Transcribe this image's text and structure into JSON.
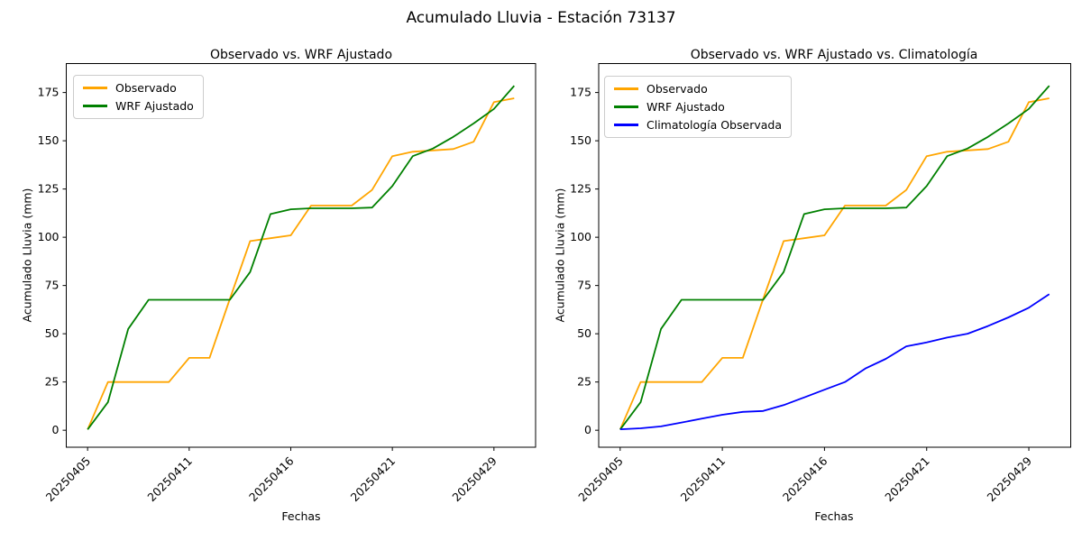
{
  "suptitle": "Acumulado Lluvia - Estación 73137",
  "colors": {
    "observado": "#FFA500",
    "wrf_ajustado": "#008000",
    "climatologia": "#0000FF",
    "text": "#000000",
    "spine": "#000000",
    "legend_border": "#cccccc"
  },
  "x_axis": {
    "label": "Fechas",
    "tick_labels": [
      "20250405",
      "20250411",
      "20250416",
      "20250421",
      "20250429"
    ]
  },
  "y_axis": {
    "label": "Acumulado Lluvia (mm)",
    "ticks": [
      0,
      25,
      50,
      75,
      100,
      125,
      150,
      175
    ]
  },
  "chart_data": [
    {
      "type": "line",
      "title": "Observado vs. WRF Ajustado",
      "xlabel": "Fechas",
      "ylabel": "Acumulado Lluvia (mm)",
      "x_index": [
        0,
        1,
        2,
        3,
        4,
        5,
        6,
        7,
        8,
        9,
        10,
        11,
        12,
        13,
        14,
        15,
        16,
        17,
        18,
        19,
        20,
        21
      ],
      "x_tick_positions": [
        0,
        5,
        10,
        15,
        20
      ],
      "x_tick_labels": [
        "20250405",
        "20250411",
        "20250416",
        "20250421",
        "20250429"
      ],
      "xlim": [
        -1.05,
        22.05
      ],
      "ylim": [
        -8.8,
        190
      ],
      "y_ticks": [
        0,
        25,
        50,
        75,
        100,
        125,
        150,
        175
      ],
      "grid": false,
      "legend_position": "upper left",
      "series": [
        {
          "name": "Observado",
          "color": "#FFA500",
          "values": [
            0.4,
            25,
            25,
            25,
            25,
            37.5,
            37.5,
            68,
            98,
            99.5,
            101,
            116.4,
            116.4,
            116.4,
            124.5,
            142,
            144.3,
            145,
            145.7,
            149.5,
            170,
            172
          ]
        },
        {
          "name": "WRF Ajustado",
          "color": "#008000",
          "values": [
            0.4,
            14.5,
            52.5,
            67.6,
            67.6,
            67.6,
            67.6,
            67.6,
            82,
            112,
            114.5,
            115,
            115,
            115,
            115.4,
            126.5,
            142,
            146,
            152,
            159,
            166.5,
            178.5
          ]
        }
      ]
    },
    {
      "type": "line",
      "title": "Observado vs. WRF Ajustado vs. Climatología",
      "xlabel": "Fechas",
      "ylabel": "Acumulado Lluvia (mm)",
      "x_index": [
        0,
        1,
        2,
        3,
        4,
        5,
        6,
        7,
        8,
        9,
        10,
        11,
        12,
        13,
        14,
        15,
        16,
        17,
        18,
        19,
        20,
        21
      ],
      "x_tick_positions": [
        0,
        5,
        10,
        15,
        20
      ],
      "x_tick_labels": [
        "20250405",
        "20250411",
        "20250416",
        "20250421",
        "20250429"
      ],
      "xlim": [
        -1.05,
        22.05
      ],
      "ylim": [
        -8.8,
        190
      ],
      "y_ticks": [
        0,
        25,
        50,
        75,
        100,
        125,
        150,
        175
      ],
      "grid": false,
      "legend_position": "upper left",
      "series": [
        {
          "name": "Observado",
          "color": "#FFA500",
          "values": [
            0.4,
            25,
            25,
            25,
            25,
            37.5,
            37.5,
            68,
            98,
            99.5,
            101,
            116.4,
            116.4,
            116.4,
            124.5,
            142,
            144.3,
            145,
            145.7,
            149.5,
            170,
            172
          ]
        },
        {
          "name": "WRF Ajustado",
          "color": "#008000",
          "values": [
            0.4,
            14.5,
            52.5,
            67.6,
            67.6,
            67.6,
            67.6,
            67.6,
            82,
            112,
            114.5,
            115,
            115,
            115,
            115.4,
            126.5,
            142,
            146,
            152,
            159,
            166.5,
            178.5
          ]
        },
        {
          "name": "Climatología Observada",
          "color": "#0000FF",
          "values": [
            0.5,
            1,
            2,
            4,
            6,
            8,
            9.5,
            10,
            13,
            17,
            21,
            25,
            32,
            37,
            43.5,
            45.5,
            48,
            50,
            54,
            58.5,
            63.5,
            70.5
          ]
        }
      ]
    }
  ]
}
